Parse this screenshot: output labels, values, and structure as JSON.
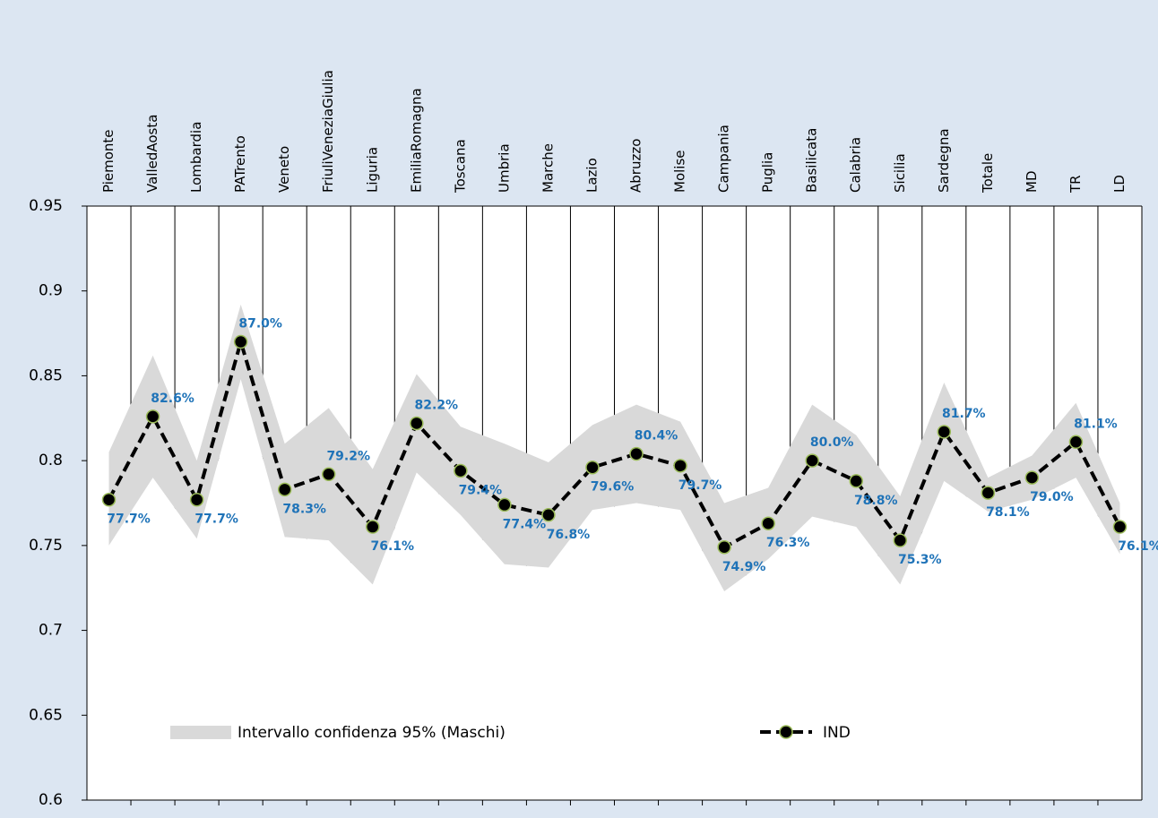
{
  "chart_data": {
    "type": "line",
    "categories": [
      "Piemonte",
      "ValledAosta",
      "Lombardia",
      "PATrento",
      "Veneto",
      "FriuliVeneziaGiulia",
      "Liguria",
      "EmiliaRomagna",
      "Toscana",
      "Umbria",
      "Marche",
      "Lazio",
      "Abruzzo",
      "Molise",
      "Campania",
      "Puglia",
      "Basilicata",
      "Calabria",
      "Sicilia",
      "Sardegna",
      "Totale",
      "MD",
      "TR",
      "LD"
    ],
    "series": [
      {
        "name": "Intervallo confidenza 95% (Maschi)",
        "color": "#d9d9d9",
        "lower": [
          0.75,
          0.79,
          0.754,
          0.848,
          0.755,
          0.753,
          0.727,
          0.793,
          0.768,
          0.739,
          0.737,
          0.771,
          0.775,
          0.771,
          0.723,
          0.742,
          0.767,
          0.761,
          0.727,
          0.788,
          0.77,
          0.777,
          0.79,
          0.745
        ],
        "upper": [
          0.805,
          0.862,
          0.8,
          0.892,
          0.81,
          0.831,
          0.795,
          0.851,
          0.82,
          0.81,
          0.799,
          0.821,
          0.833,
          0.823,
          0.775,
          0.784,
          0.833,
          0.815,
          0.779,
          0.846,
          0.79,
          0.803,
          0.834,
          0.775
        ]
      },
      {
        "name": "IND",
        "color": "#000000",
        "values": [
          0.777,
          0.826,
          0.777,
          0.87,
          0.783,
          0.792,
          0.761,
          0.822,
          0.794,
          0.774,
          0.768,
          0.796,
          0.804,
          0.797,
          0.749,
          0.763,
          0.8,
          0.788,
          0.753,
          0.817,
          0.781,
          0.79,
          0.811,
          0.761
        ],
        "value_labels": [
          "77.7%",
          "82.6%",
          "77.7%",
          "87.0%",
          "78.3%",
          "79.2%",
          "76.1%",
          "82.2%",
          "79.4%",
          "77.4%",
          "76.8%",
          "79.6%",
          "80.4%",
          "79.7%",
          "74.9%",
          "76.3%",
          "80.0%",
          "78.8%",
          "75.3%",
          "81.7%",
          "78.1%",
          "79.0%",
          "81.1%",
          "76.1%"
        ]
      }
    ],
    "ylim": [
      0.6,
      0.95
    ],
    "yticks": [
      0.6,
      0.65,
      0.7,
      0.75,
      0.8,
      0.85,
      0.9,
      0.95
    ]
  }
}
